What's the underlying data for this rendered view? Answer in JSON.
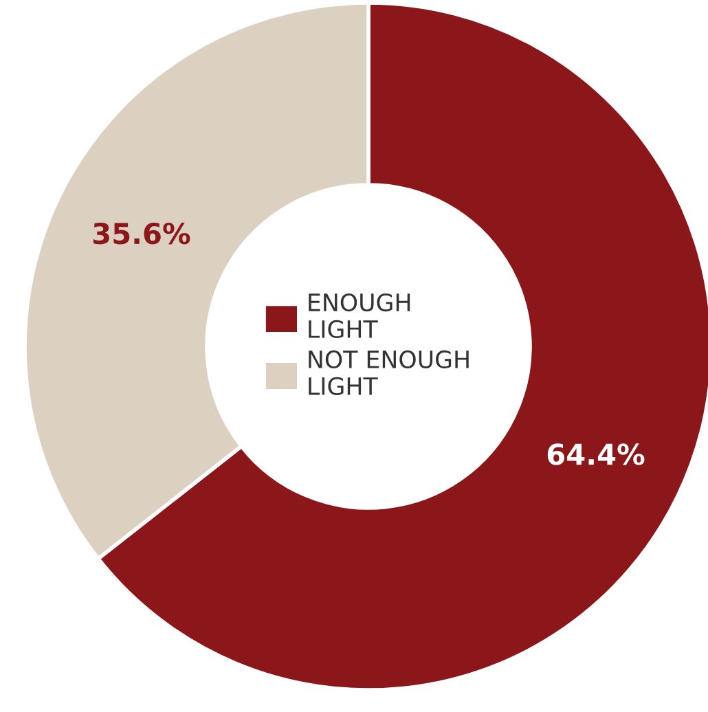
{
  "chart_data": {
    "type": "donut",
    "categories": [
      "ENOUGH LIGHT",
      "NOT ENOUGH LIGHT"
    ],
    "values": [
      64.4,
      35.6
    ],
    "colors": [
      "#8b171b",
      "#dcd0c0"
    ],
    "value_labels": [
      "64.4%",
      "35.6%"
    ],
    "legend": "center"
  }
}
